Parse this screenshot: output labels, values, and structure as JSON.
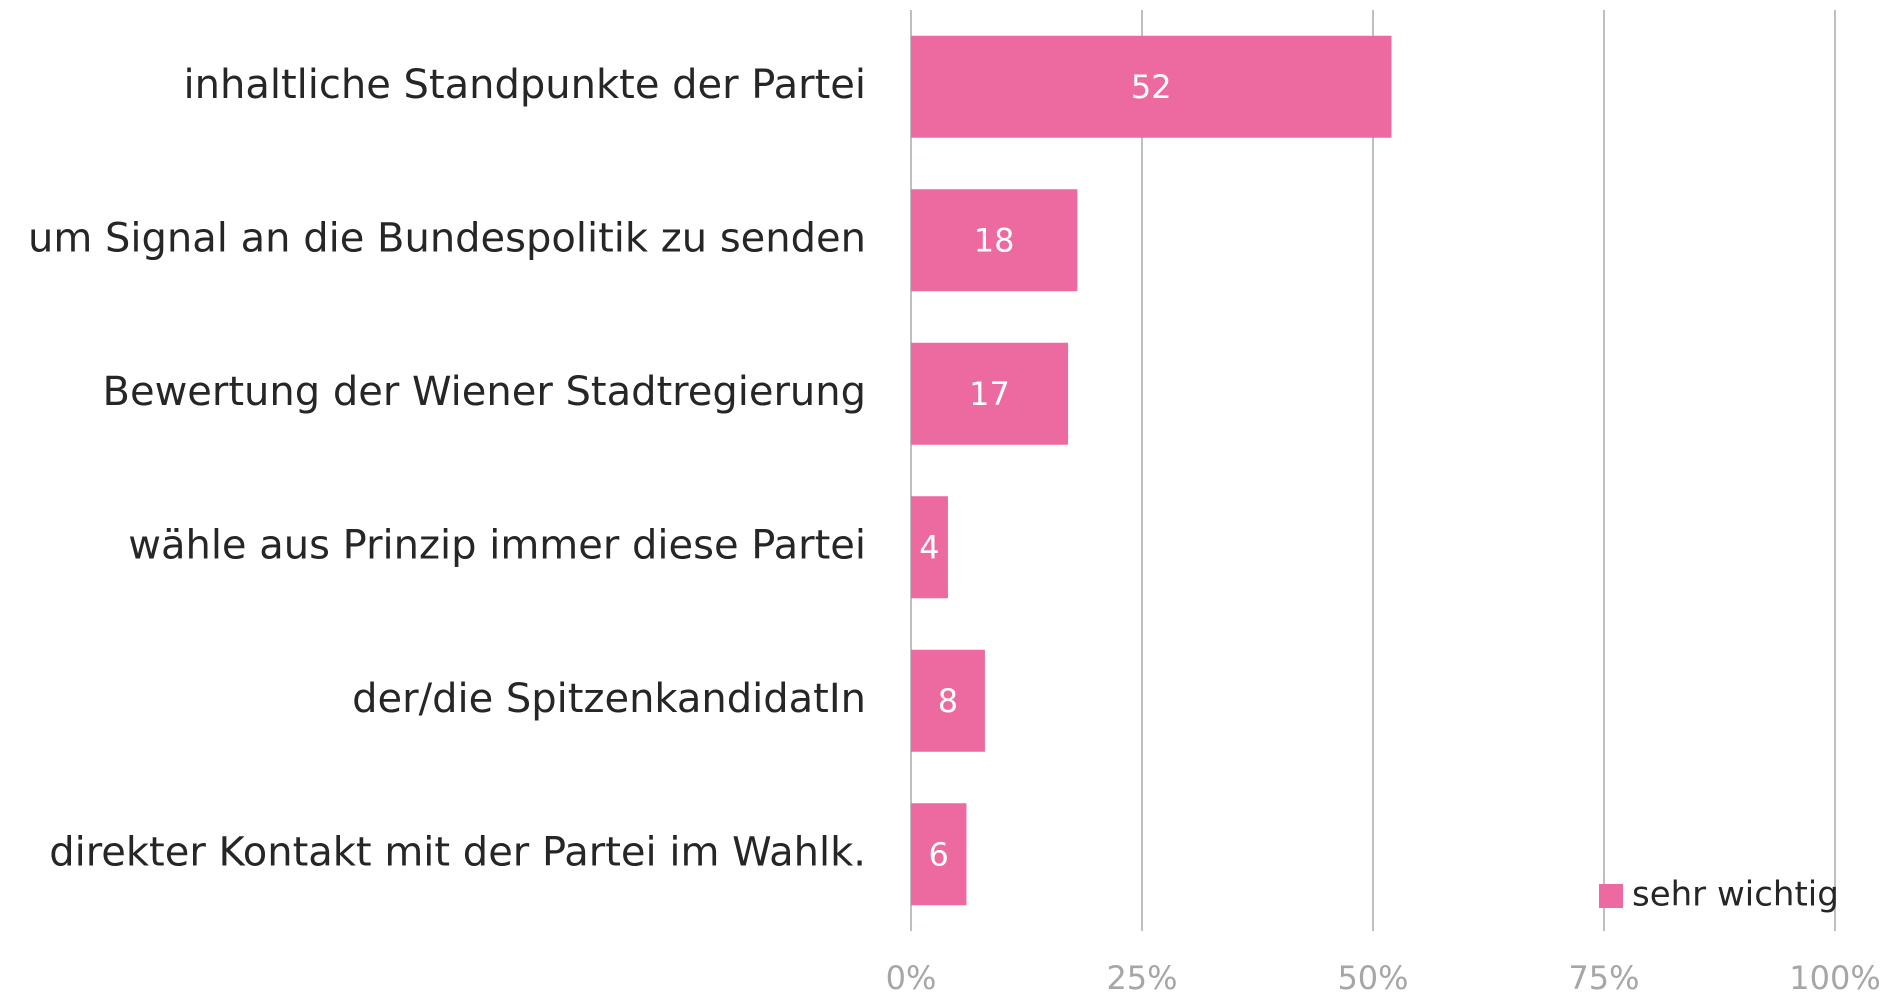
{
  "chart_data": {
    "type": "hbar",
    "categories": [
      "inhaltliche Standpunkte der Partei",
      "um Signal an die Bundespolitik zu senden",
      "Bewertung der Wiener Stadtregierung",
      "wähle aus Prinzip immer diese Partei",
      "der/die SpitzenkandidatIn",
      "direkter Kontakt mit der Partei im Wahlk."
    ],
    "series": [
      {
        "name": "sehr wichtig",
        "color": "#ec6a9f",
        "values": [
          52,
          18,
          17,
          4,
          8,
          6
        ]
      }
    ],
    "xlim": [
      0,
      100
    ],
    "xticks": [
      {
        "value": 0,
        "label": "0%"
      },
      {
        "value": 25,
        "label": "25%"
      },
      {
        "value": 50,
        "label": "50%"
      },
      {
        "value": 75,
        "label": "75%"
      },
      {
        "value": 100,
        "label": "100%"
      }
    ],
    "grid": true,
    "legend": "bottom-right"
  }
}
